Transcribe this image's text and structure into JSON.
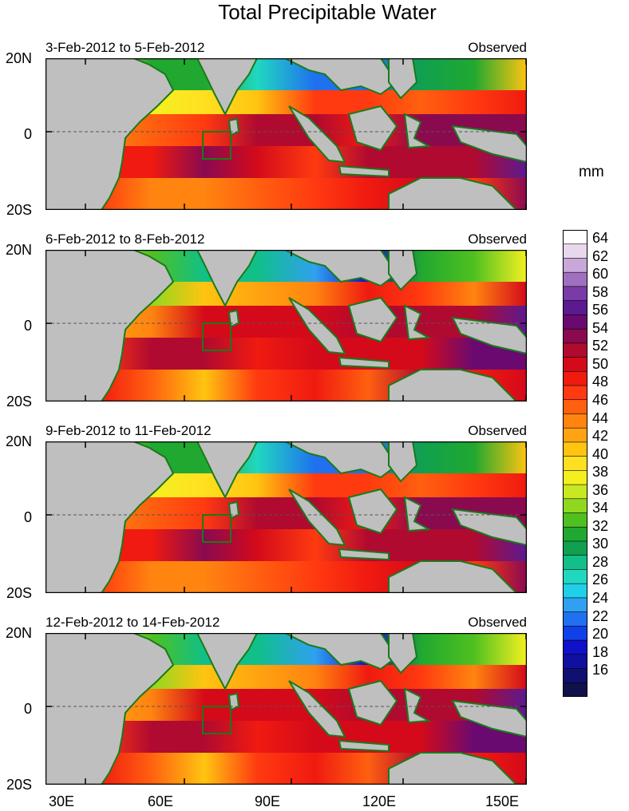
{
  "title": "Total Precipitable Water",
  "units": "mm",
  "panels": [
    {
      "date_range": "3-Feb-2012 to 5-Feb-2012",
      "status": "Observed"
    },
    {
      "date_range": "6-Feb-2012 to 8-Feb-2012",
      "status": "Observed"
    },
    {
      "date_range": "9-Feb-2012 to 11-Feb-2012",
      "status": "Observed"
    },
    {
      "date_range": "12-Feb-2012 to 14-Feb-2012",
      "status": "Observed"
    }
  ],
  "lat_labels": [
    "20N",
    "0",
    "20S"
  ],
  "lon_labels": [
    "30E",
    "60E",
    "90E",
    "120E",
    "150E"
  ],
  "colorbar": {
    "labels": [
      "64",
      "62",
      "60",
      "58",
      "56",
      "54",
      "52",
      "50",
      "48",
      "46",
      "44",
      "42",
      "40",
      "38",
      "36",
      "34",
      "32",
      "30",
      "28",
      "26",
      "24",
      "22",
      "20",
      "18",
      "16"
    ],
    "colors_top_to_bottom": [
      "#ffffff",
      "#e8d8ec",
      "#c8a8d8",
      "#a070c0",
      "#7a3aa8",
      "#5c1a90",
      "#6a0a70",
      "#8a0a50",
      "#b00a30",
      "#d40a1a",
      "#f01a10",
      "#ff3a10",
      "#ff6010",
      "#ff8410",
      "#ffa410",
      "#ffc410",
      "#ffe020",
      "#f4f020",
      "#c8e820",
      "#90d820",
      "#50c020",
      "#20a830",
      "#10a050",
      "#10c088",
      "#20d8c0",
      "#20d0e8",
      "#30a0f0",
      "#2070f0",
      "#1040e8",
      "#1010c8",
      "#1010a0",
      "#101070",
      "#10104a"
    ]
  },
  "map_colors": {
    "land": "#bfbfbf",
    "coast": "#1a7a1a",
    "box": "#1a7a1a",
    "equator": "#555555"
  }
}
